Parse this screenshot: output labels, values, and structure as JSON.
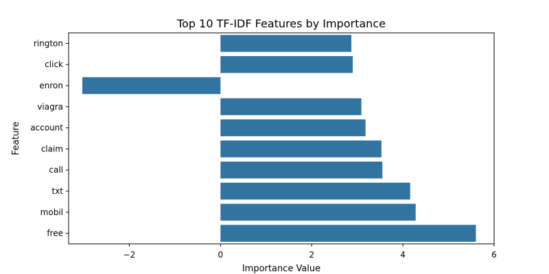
{
  "chart_data": {
    "type": "bar",
    "orientation": "horizontal",
    "title": "Top 10 TF-IDF Features by Importance",
    "xlabel": "Importance Value",
    "ylabel": "Feature",
    "categories": [
      "rington",
      "click",
      "enron",
      "viagra",
      "account",
      "claim",
      "call",
      "txt",
      "mobil",
      "free"
    ],
    "values": [
      2.87,
      2.9,
      -3.03,
      3.09,
      3.18,
      3.53,
      3.55,
      4.16,
      4.28,
      5.6
    ],
    "xlim": [
      -3.33,
      6.0
    ],
    "xticks": [
      -2,
      0,
      2,
      4,
      6
    ],
    "xtick_labels": [
      "−2",
      "0",
      "2",
      "4",
      "6"
    ],
    "bar_color": "#3274a1",
    "grid": false,
    "legend": "none"
  }
}
